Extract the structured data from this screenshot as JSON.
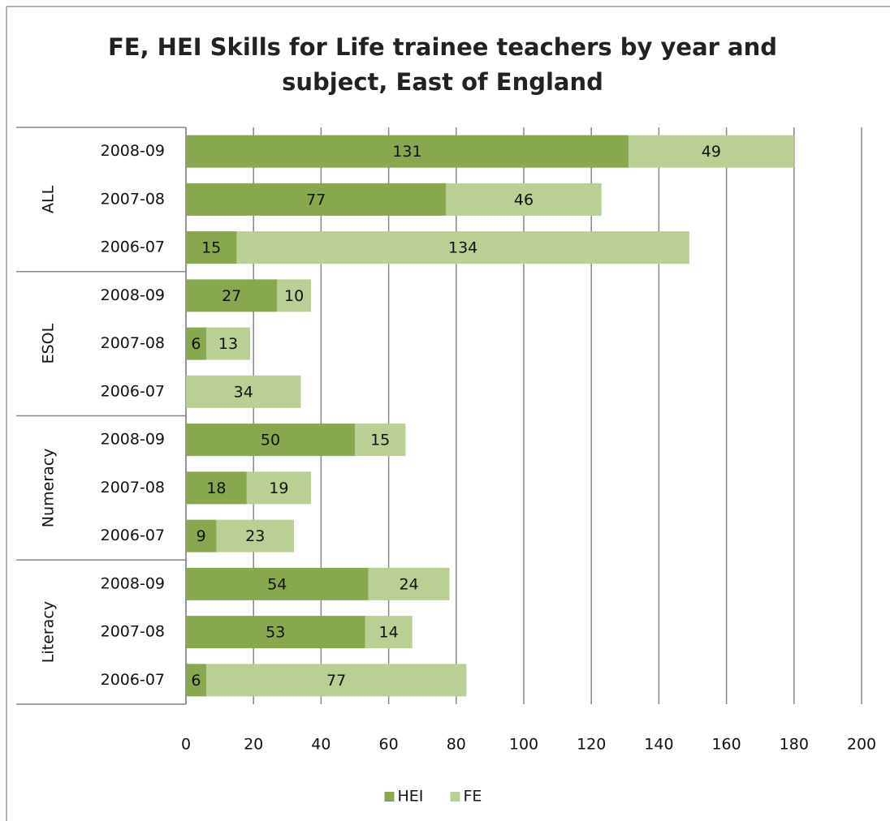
{
  "chart_data": {
    "type": "stacked-bar-horizontal",
    "title": [
      "FE, HEI Skills for Life trainee teachers by year and",
      "subject, East of England"
    ],
    "groups": [
      {
        "name": "ALL",
        "categories": [
          "2008-09",
          "2007-08",
          "2006-07"
        ]
      },
      {
        "name": "ESOL",
        "categories": [
          "2008-09",
          "2007-08",
          "2006-07"
        ]
      },
      {
        "name": "Numeracy",
        "categories": [
          "2008-09",
          "2007-08",
          "2006-07"
        ]
      },
      {
        "name": "Literacy",
        "categories": [
          "2008-09",
          "2007-08",
          "2006-07"
        ]
      }
    ],
    "series": [
      {
        "name": "HEI",
        "color": "#87a84f",
        "values": [
          131,
          77,
          15,
          27,
          6,
          null,
          50,
          18,
          9,
          54,
          53,
          6
        ]
      },
      {
        "name": "FE",
        "color": "#b9cf94",
        "values": [
          49,
          46,
          134,
          10,
          13,
          34,
          15,
          19,
          23,
          24,
          14,
          77
        ]
      }
    ],
    "xlim": [
      0,
      200
    ],
    "xticks": [
      0,
      20,
      40,
      60,
      80,
      100,
      120,
      140,
      160,
      180,
      200
    ],
    "grid": true,
    "legend": "bottom"
  }
}
